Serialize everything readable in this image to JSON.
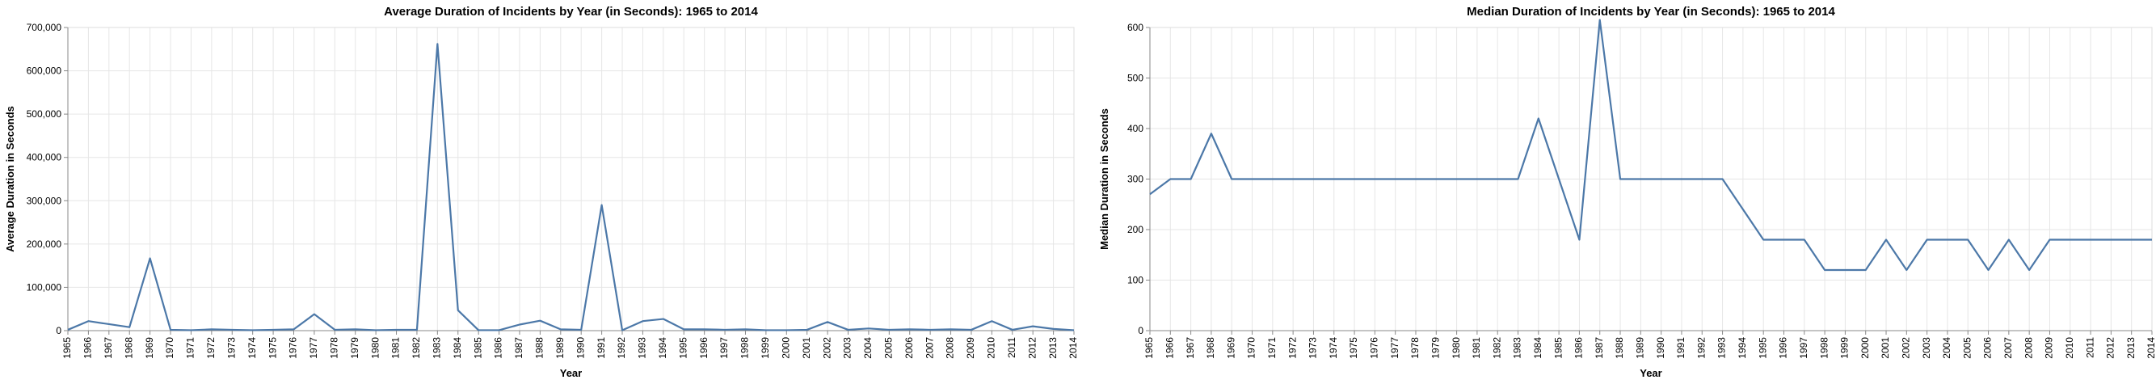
{
  "chart_data": [
    {
      "type": "line",
      "title": "Average Duration of Incidents by Year (in Seconds): 1965 to 2014",
      "xlabel": "Year",
      "ylabel": "Average Duration in Seconds",
      "ylim": [
        0,
        700000
      ],
      "yticks": [
        "0",
        "100,000",
        "200,000",
        "300,000",
        "400,000",
        "500,000",
        "600,000",
        "700,000"
      ],
      "grid": true,
      "color": "#4c78a8",
      "x": [
        "1965",
        "1966",
        "1967",
        "1968",
        "1969",
        "1970",
        "1971",
        "1972",
        "1973",
        "1974",
        "1975",
        "1976",
        "1977",
        "1978",
        "1979",
        "1980",
        "1981",
        "1982",
        "1983",
        "1984",
        "1985",
        "1986",
        "1987",
        "1988",
        "1989",
        "1990",
        "1991",
        "1992",
        "1993",
        "1994",
        "1995",
        "1996",
        "1997",
        "1998",
        "1999",
        "2000",
        "2001",
        "2002",
        "2003",
        "2004",
        "2005",
        "2006",
        "2007",
        "2008",
        "2009",
        "2010",
        "2011",
        "2012",
        "2013",
        "2014"
      ],
      "values": [
        2000,
        22000,
        15000,
        8000,
        167000,
        2000,
        1000,
        3000,
        2000,
        1000,
        2000,
        3000,
        38000,
        2000,
        3000,
        1000,
        2000,
        2000,
        662000,
        47000,
        1000,
        1000,
        14000,
        23000,
        3000,
        2000,
        290000,
        1000,
        22000,
        27000,
        3000,
        3000,
        2000,
        3000,
        1000,
        1000,
        2000,
        20000,
        2000,
        5000,
        2000,
        3000,
        2000,
        3000,
        2000,
        22000,
        2000,
        10000,
        4000,
        1000
      ]
    },
    {
      "type": "line",
      "title": "Median Duration of Incidents by Year (in Seconds): 1965 to 2014",
      "xlabel": "Year",
      "ylabel": "Median Duration in Seconds",
      "ylim": [
        0,
        600
      ],
      "yticks": [
        "0",
        "100",
        "200",
        "300",
        "400",
        "500",
        "600"
      ],
      "grid": true,
      "color": "#4c78a8",
      "x": [
        "1965",
        "1966",
        "1967",
        "1968",
        "1969",
        "1970",
        "1971",
        "1972",
        "1973",
        "1974",
        "1975",
        "1976",
        "1977",
        "1978",
        "1979",
        "1980",
        "1981",
        "1982",
        "1983",
        "1984",
        "1985",
        "1986",
        "1987",
        "1988",
        "1989",
        "1990",
        "1991",
        "1992",
        "1993",
        "1994",
        "1995",
        "1996",
        "1997",
        "1998",
        "1999",
        "2000",
        "2001",
        "2002",
        "2003",
        "2004",
        "2005",
        "2006",
        "2007",
        "2008",
        "2009",
        "2010",
        "2011",
        "2012",
        "2013",
        "2014"
      ],
      "values": [
        270,
        300,
        300,
        390,
        300,
        300,
        300,
        300,
        300,
        300,
        300,
        300,
        300,
        300,
        300,
        300,
        300,
        300,
        300,
        420,
        300,
        180,
        615,
        300,
        300,
        300,
        300,
        300,
        300,
        240,
        180,
        180,
        180,
        120,
        120,
        120,
        180,
        120,
        180,
        180,
        180,
        120,
        180,
        120,
        180,
        180,
        180,
        180,
        180,
        180
      ]
    }
  ]
}
